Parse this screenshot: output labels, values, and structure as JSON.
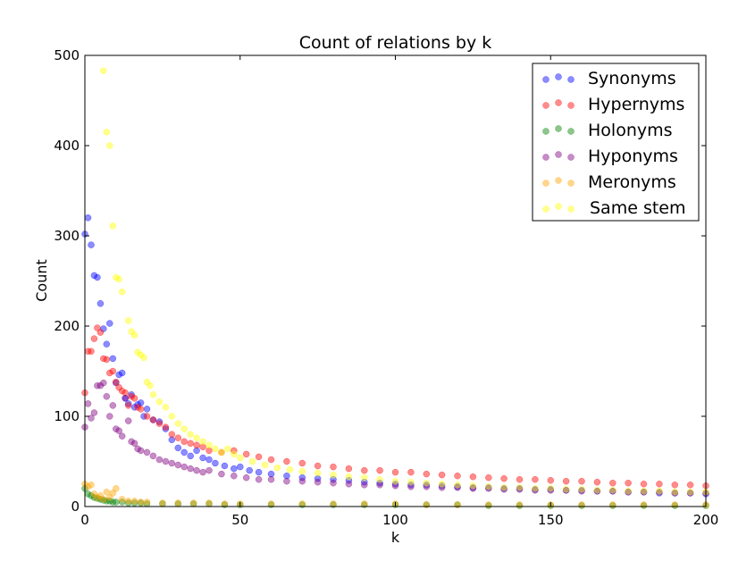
{
  "chart_data": {
    "type": "scatter",
    "title": "Count of relations by k",
    "xlabel": "k",
    "ylabel": "Count",
    "xlim": [
      0,
      200
    ],
    "ylim": [
      0,
      500
    ],
    "xticks": [
      "0",
      "50",
      "100",
      "150",
      "200"
    ],
    "yticks": [
      "0",
      "100",
      "200",
      "300",
      "400",
      "500"
    ],
    "legend_position": "top-right",
    "grid": false,
    "series": [
      {
        "name": "Synonyms",
        "color": "#0000ff",
        "points": [
          [
            0,
            302
          ],
          [
            1,
            320
          ],
          [
            2,
            290
          ],
          [
            3,
            256
          ],
          [
            4,
            254
          ],
          [
            5,
            225
          ],
          [
            6,
            197
          ],
          [
            7,
            180
          ],
          [
            8,
            203
          ],
          [
            9,
            164
          ],
          [
            10,
            137
          ],
          [
            11,
            146
          ],
          [
            12,
            148
          ],
          [
            13,
            120
          ],
          [
            14,
            114
          ],
          [
            15,
            124
          ],
          [
            16,
            110
          ],
          [
            17,
            113
          ],
          [
            18,
            115
          ],
          [
            19,
            100
          ],
          [
            20,
            108
          ],
          [
            22,
            96
          ],
          [
            24,
            94
          ],
          [
            26,
            86
          ],
          [
            28,
            74
          ],
          [
            30,
            65
          ],
          [
            32,
            60
          ],
          [
            34,
            56
          ],
          [
            36,
            62
          ],
          [
            38,
            54
          ],
          [
            40,
            52
          ],
          [
            42,
            48
          ],
          [
            45,
            45
          ],
          [
            48,
            42
          ],
          [
            50,
            44
          ],
          [
            53,
            40
          ],
          [
            56,
            38
          ],
          [
            60,
            36
          ],
          [
            65,
            34
          ],
          [
            70,
            32
          ],
          [
            75,
            31
          ],
          [
            80,
            30
          ],
          [
            85,
            29
          ],
          [
            90,
            27
          ],
          [
            95,
            26
          ],
          [
            100,
            25
          ],
          [
            105,
            24
          ],
          [
            110,
            24
          ],
          [
            115,
            23
          ],
          [
            120,
            22
          ],
          [
            125,
            21
          ],
          [
            130,
            21
          ],
          [
            135,
            20
          ],
          [
            140,
            20
          ],
          [
            145,
            19
          ],
          [
            150,
            19
          ],
          [
            155,
            18
          ],
          [
            160,
            18
          ],
          [
            165,
            17
          ],
          [
            170,
            17
          ],
          [
            175,
            16
          ],
          [
            180,
            16
          ],
          [
            185,
            15
          ],
          [
            190,
            15
          ],
          [
            195,
            15
          ],
          [
            200,
            14
          ]
        ]
      },
      {
        "name": "Hypernyms",
        "color": "#ff0000",
        "points": [
          [
            0,
            126
          ],
          [
            1,
            172
          ],
          [
            2,
            172
          ],
          [
            3,
            186
          ],
          [
            4,
            198
          ],
          [
            5,
            193
          ],
          [
            6,
            164
          ],
          [
            7,
            163
          ],
          [
            8,
            148
          ],
          [
            9,
            150
          ],
          [
            10,
            138
          ],
          [
            11,
            132
          ],
          [
            12,
            128
          ],
          [
            13,
            126
          ],
          [
            14,
            112
          ],
          [
            15,
            122
          ],
          [
            16,
            120
          ],
          [
            17,
            110
          ],
          [
            18,
            108
          ],
          [
            20,
            100
          ],
          [
            22,
            96
          ],
          [
            24,
            92
          ],
          [
            26,
            88
          ],
          [
            28,
            80
          ],
          [
            30,
            76
          ],
          [
            32,
            72
          ],
          [
            34,
            70
          ],
          [
            36,
            68
          ],
          [
            38,
            66
          ],
          [
            40,
            62
          ],
          [
            44,
            60
          ],
          [
            48,
            62
          ],
          [
            52,
            58
          ],
          [
            56,
            55
          ],
          [
            60,
            52
          ],
          [
            65,
            50
          ],
          [
            70,
            48
          ],
          [
            75,
            45
          ],
          [
            80,
            44
          ],
          [
            85,
            42
          ],
          [
            90,
            40
          ],
          [
            95,
            40
          ],
          [
            100,
            38
          ],
          [
            105,
            38
          ],
          [
            110,
            36
          ],
          [
            115,
            35
          ],
          [
            120,
            34
          ],
          [
            125,
            33
          ],
          [
            130,
            32
          ],
          [
            135,
            31
          ],
          [
            140,
            30
          ],
          [
            145,
            30
          ],
          [
            150,
            29
          ],
          [
            155,
            28
          ],
          [
            160,
            28
          ],
          [
            165,
            27
          ],
          [
            170,
            26
          ],
          [
            175,
            26
          ],
          [
            180,
            25
          ],
          [
            185,
            25
          ],
          [
            190,
            24
          ],
          [
            195,
            24
          ],
          [
            200,
            23
          ]
        ]
      },
      {
        "name": "Holonyms",
        "color": "#008000",
        "points": [
          [
            0,
            20
          ],
          [
            1,
            14
          ],
          [
            2,
            12
          ],
          [
            3,
            10
          ],
          [
            4,
            9
          ],
          [
            5,
            8
          ],
          [
            6,
            7
          ],
          [
            7,
            6
          ],
          [
            8,
            6
          ],
          [
            9,
            5
          ],
          [
            10,
            5
          ],
          [
            12,
            5
          ],
          [
            14,
            4
          ],
          [
            16,
            4
          ],
          [
            18,
            4
          ],
          [
            20,
            3
          ],
          [
            25,
            3
          ],
          [
            30,
            3
          ],
          [
            35,
            3
          ],
          [
            40,
            3
          ],
          [
            45,
            2
          ],
          [
            50,
            2
          ],
          [
            60,
            2
          ],
          [
            70,
            2
          ],
          [
            80,
            2
          ],
          [
            90,
            2
          ],
          [
            100,
            2
          ],
          [
            110,
            2
          ],
          [
            120,
            2
          ],
          [
            130,
            1
          ],
          [
            140,
            1
          ],
          [
            150,
            1
          ],
          [
            160,
            1
          ],
          [
            170,
            1
          ],
          [
            180,
            1
          ],
          [
            190,
            1
          ],
          [
            200,
            1
          ]
        ]
      },
      {
        "name": "Hyponyms",
        "color": "#800080",
        "points": [
          [
            0,
            88
          ],
          [
            1,
            114
          ],
          [
            2,
            98
          ],
          [
            3,
            104
          ],
          [
            4,
            134
          ],
          [
            5,
            134
          ],
          [
            6,
            137
          ],
          [
            7,
            122
          ],
          [
            8,
            100
          ],
          [
            9,
            112
          ],
          [
            10,
            86
          ],
          [
            11,
            84
          ],
          [
            12,
            78
          ],
          [
            13,
            120
          ],
          [
            14,
            95
          ],
          [
            15,
            72
          ],
          [
            16,
            70
          ],
          [
            17,
            64
          ],
          [
            18,
            62
          ],
          [
            20,
            60
          ],
          [
            22,
            56
          ],
          [
            24,
            52
          ],
          [
            26,
            50
          ],
          [
            28,
            48
          ],
          [
            30,
            46
          ],
          [
            32,
            44
          ],
          [
            34,
            42
          ],
          [
            36,
            40
          ],
          [
            38,
            38
          ],
          [
            40,
            40
          ],
          [
            44,
            36
          ],
          [
            48,
            34
          ],
          [
            52,
            32
          ],
          [
            56,
            30
          ],
          [
            60,
            30
          ],
          [
            65,
            28
          ],
          [
            70,
            28
          ],
          [
            75,
            27
          ],
          [
            80,
            26
          ],
          [
            85,
            25
          ],
          [
            90,
            24
          ],
          [
            95,
            24
          ],
          [
            100,
            23
          ],
          [
            105,
            22
          ],
          [
            110,
            22
          ],
          [
            115,
            21
          ],
          [
            120,
            21
          ],
          [
            125,
            20
          ],
          [
            130,
            20
          ],
          [
            135,
            19
          ],
          [
            140,
            19
          ],
          [
            145,
            18
          ],
          [
            150,
            18
          ],
          [
            155,
            18
          ],
          [
            160,
            17
          ],
          [
            165,
            17
          ],
          [
            170,
            17
          ],
          [
            175,
            16
          ],
          [
            180,
            16
          ],
          [
            185,
            16
          ],
          [
            190,
            15
          ],
          [
            195,
            15
          ],
          [
            200,
            15
          ]
        ]
      },
      {
        "name": "Meronyms",
        "color": "#ffa500",
        "points": [
          [
            0,
            25
          ],
          [
            1,
            22
          ],
          [
            2,
            24
          ],
          [
            3,
            14
          ],
          [
            4,
            10
          ],
          [
            5,
            12
          ],
          [
            6,
            8
          ],
          [
            7,
            16
          ],
          [
            8,
            10
          ],
          [
            9,
            15
          ],
          [
            10,
            20
          ],
          [
            12,
            8
          ],
          [
            14,
            6
          ],
          [
            16,
            6
          ],
          [
            18,
            5
          ],
          [
            20,
            5
          ],
          [
            25,
            4
          ],
          [
            30,
            4
          ],
          [
            35,
            4
          ],
          [
            40,
            4
          ],
          [
            45,
            3
          ],
          [
            50,
            3
          ],
          [
            60,
            3
          ],
          [
            70,
            3
          ],
          [
            80,
            3
          ],
          [
            90,
            3
          ],
          [
            100,
            3
          ],
          [
            110,
            2
          ],
          [
            120,
            2
          ],
          [
            130,
            2
          ],
          [
            140,
            2
          ],
          [
            150,
            2
          ],
          [
            160,
            2
          ],
          [
            170,
            2
          ],
          [
            180,
            2
          ],
          [
            190,
            2
          ],
          [
            200,
            2
          ]
        ]
      },
      {
        "name": "Same stem",
        "color": "#ffff00",
        "points": [
          [
            6,
            483
          ],
          [
            7,
            415
          ],
          [
            8,
            400
          ],
          [
            9,
            311
          ],
          [
            10,
            254
          ],
          [
            11,
            252
          ],
          [
            12,
            238
          ],
          [
            14,
            206
          ],
          [
            15,
            194
          ],
          [
            16,
            190
          ],
          [
            17,
            171
          ],
          [
            18,
            168
          ],
          [
            19,
            165
          ],
          [
            20,
            138
          ],
          [
            21,
            134
          ],
          [
            22,
            124
          ],
          [
            24,
            116
          ],
          [
            26,
            110
          ],
          [
            28,
            100
          ],
          [
            30,
            92
          ],
          [
            32,
            86
          ],
          [
            34,
            80
          ],
          [
            36,
            76
          ],
          [
            38,
            72
          ],
          [
            40,
            68
          ],
          [
            42,
            64
          ],
          [
            44,
            60
          ],
          [
            46,
            64
          ],
          [
            48,
            58
          ],
          [
            50,
            54
          ],
          [
            54,
            50
          ],
          [
            58,
            46
          ],
          [
            62,
            43
          ],
          [
            66,
            41
          ],
          [
            70,
            39
          ],
          [
            75,
            37
          ],
          [
            80,
            35
          ],
          [
            85,
            33
          ],
          [
            90,
            32
          ],
          [
            95,
            30
          ],
          [
            100,
            28
          ],
          [
            105,
            27
          ],
          [
            110,
            26
          ],
          [
            115,
            25
          ],
          [
            120,
            24
          ],
          [
            125,
            23
          ],
          [
            130,
            22
          ],
          [
            135,
            21
          ],
          [
            140,
            21
          ],
          [
            145,
            20
          ],
          [
            150,
            20
          ],
          [
            155,
            19
          ],
          [
            160,
            19
          ],
          [
            165,
            18
          ],
          [
            170,
            18
          ],
          [
            175,
            17
          ],
          [
            180,
            17
          ],
          [
            185,
            17
          ],
          [
            190,
            16
          ],
          [
            195,
            16
          ],
          [
            200,
            16
          ]
        ]
      }
    ]
  }
}
